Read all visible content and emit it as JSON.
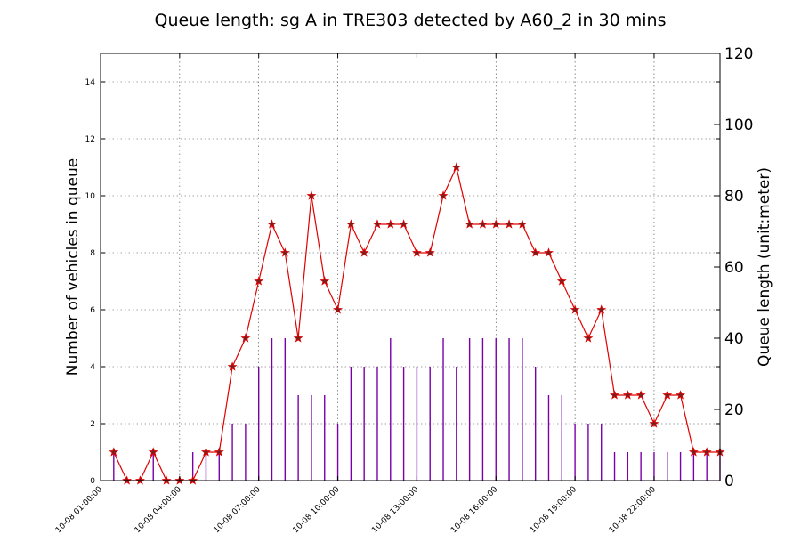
{
  "chart_data": {
    "type": "line",
    "title": "Queue length: sg A in TRE303 detected by A60_2 in 30 mins",
    "ylabel_left": "Number of vehicles in queue",
    "ylabel_right": "Queue length (unit:meter)",
    "ylim_left": [
      0,
      15
    ],
    "ylim_right": [
      0,
      120
    ],
    "yticks_left": [
      "0",
      "2",
      "4",
      "6",
      "8",
      "10",
      "12",
      "14"
    ],
    "yticks_right": [
      "0",
      "20",
      "40",
      "60",
      "80",
      "100",
      "120"
    ],
    "x_start_hours": 1.0,
    "x_end_hours": 24.5,
    "xticks": [
      {
        "hours": 1,
        "label": "10-08 01:00:00"
      },
      {
        "hours": 4,
        "label": "10-08 04:00:00"
      },
      {
        "hours": 7,
        "label": "10-08 07:00:00"
      },
      {
        "hours": 10,
        "label": "10-08 10:00:00"
      },
      {
        "hours": 13,
        "label": "10-08 13:00:00"
      },
      {
        "hours": 16,
        "label": "10-08 16:00:00"
      },
      {
        "hours": 19,
        "label": "10-08 19:00:00"
      },
      {
        "hours": 22,
        "label": "10-08 22:00:00"
      }
    ],
    "grid": true,
    "queue_series": {
      "color": "#e00000",
      "marker": "star",
      "x_hours": [
        1.5,
        2.0,
        2.5,
        3.0,
        3.5,
        4.0,
        4.5,
        5.0,
        5.5,
        6.0,
        6.5,
        7.0,
        7.5,
        8.0,
        8.5,
        9.0,
        9.5,
        10.0,
        10.5,
        11.0,
        11.5,
        12.0,
        12.5,
        13.0,
        13.5,
        14.0,
        14.5,
        15.0,
        15.5,
        16.0,
        16.5,
        17.0,
        17.5,
        18.0,
        18.5,
        19.0,
        19.5,
        20.0,
        20.5,
        21.0,
        21.5,
        22.0,
        22.5,
        23.0,
        23.5,
        24.0,
        24.5
      ],
      "values": [
        1,
        0,
        0,
        1,
        0,
        0,
        0,
        1,
        1,
        4,
        5,
        7,
        9,
        8,
        5,
        10,
        7,
        6,
        9,
        8,
        9,
        9,
        9,
        8,
        8,
        10,
        11,
        9,
        9,
        9,
        9,
        9,
        8,
        8,
        7,
        6,
        5,
        6,
        3,
        3,
        3,
        2,
        3,
        3,
        1,
        1,
        1
      ]
    },
    "meter_series": {
      "color": "#7a00aa",
      "x_hours": [
        1.5,
        3.0,
        4.5,
        5.0,
        5.5,
        6.0,
        6.5,
        7.0,
        7.5,
        8.0,
        8.5,
        9.0,
        9.5,
        10.0,
        10.5,
        11.0,
        11.5,
        12.0,
        12.5,
        13.0,
        13.5,
        14.0,
        14.5,
        15.0,
        15.5,
        16.0,
        16.5,
        17.0,
        17.5,
        18.0,
        18.5,
        19.0,
        19.5,
        20.0,
        20.5,
        21.0,
        21.5,
        22.0,
        22.5,
        23.0,
        23.5,
        24.0,
        24.5
      ],
      "values": [
        8,
        8,
        8,
        8,
        8,
        16,
        16,
        32,
        40,
        40,
        24,
        24,
        24,
        16,
        32,
        32,
        32,
        40,
        32,
        32,
        32,
        40,
        32,
        40,
        40,
        40,
        40,
        40,
        32,
        24,
        24,
        16,
        16,
        16,
        8,
        8,
        8,
        8,
        8,
        8,
        8,
        8,
        8
      ]
    }
  }
}
